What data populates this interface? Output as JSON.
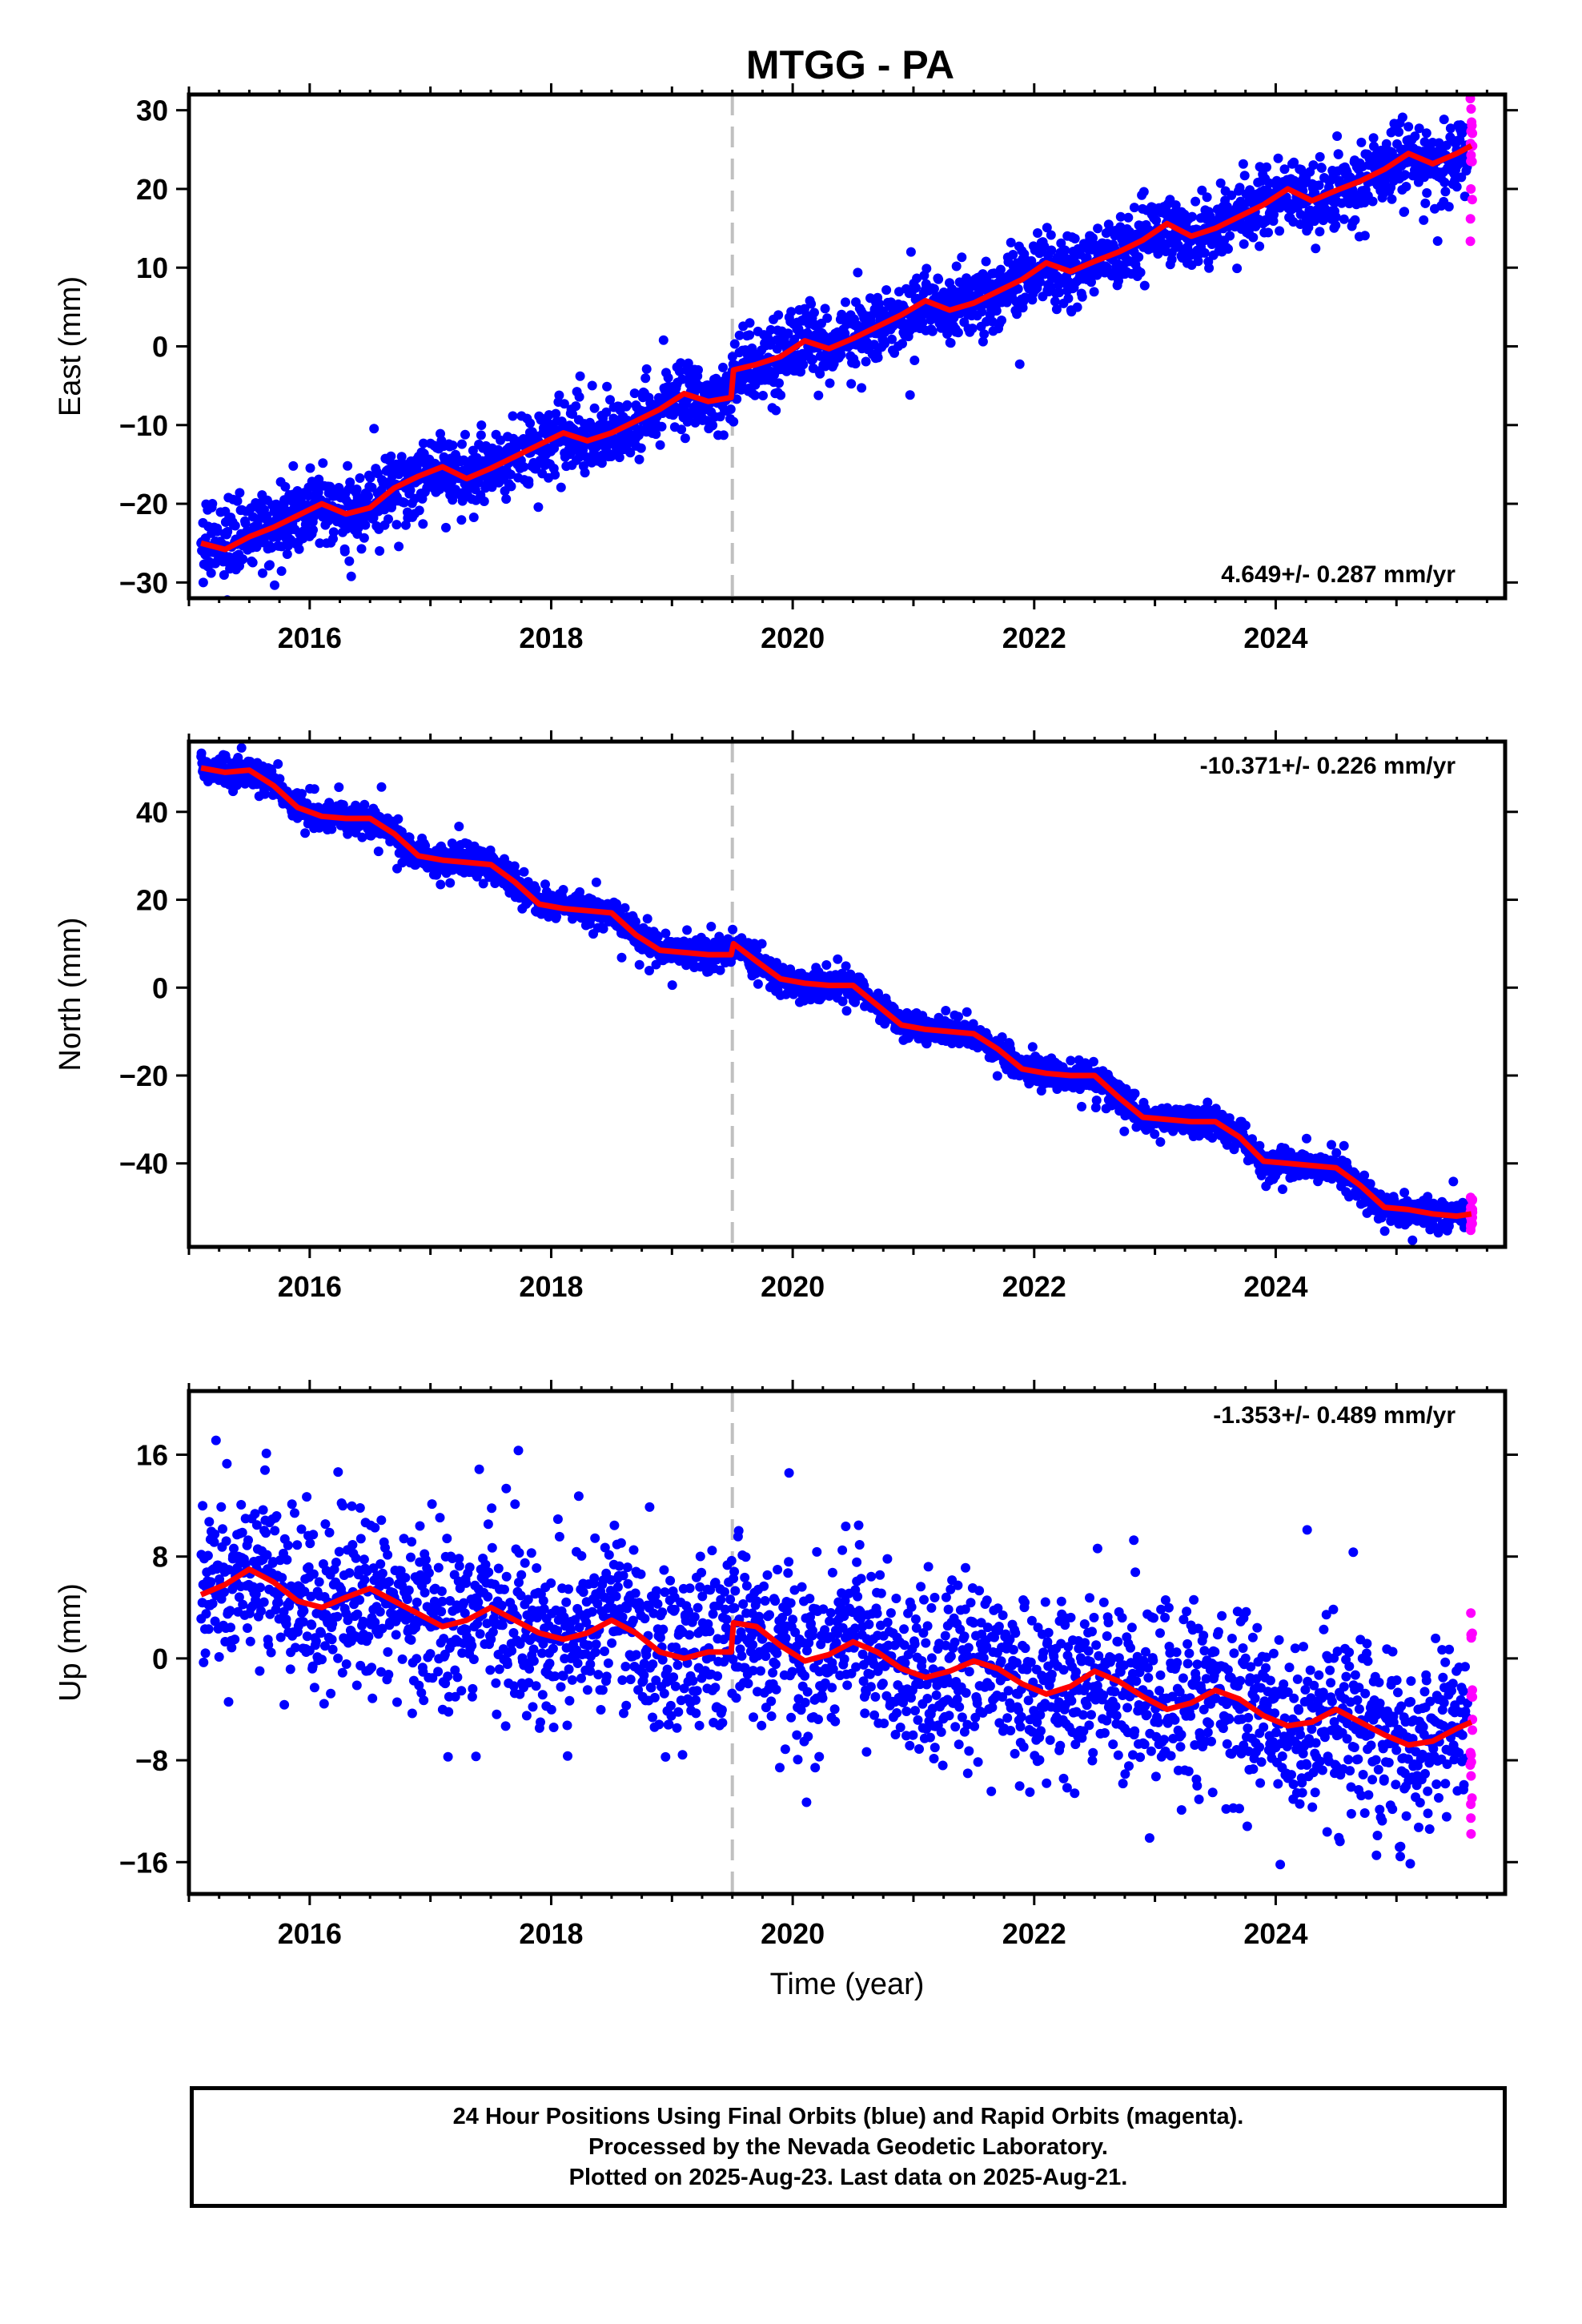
{
  "title": "MTGG - PA",
  "footer": {
    "line1": "24 Hour Positions Using Final Orbits (blue) and Rapid Orbits (magenta).",
    "line2": "Processed by the Nevada Geodetic Laboratory.",
    "line3": "Plotted on 2025-Aug-23. Last data on 2025-Aug-21."
  },
  "colors": {
    "final_points": "#0000ff",
    "rapid_points": "#ff00ff",
    "model_line": "#ff0000",
    "event_line": "#c0c0c0"
  },
  "chart_data": [
    {
      "type": "scatter",
      "panel": "east",
      "ylabel": "East (mm)",
      "xlabel": "",
      "rate_label": "4.649+/- 0.287 mm/yr",
      "xlim": [
        2015.0,
        2025.9
      ],
      "ylim": [
        -32,
        32
      ],
      "xticks": [
        2016,
        2018,
        2020,
        2022,
        2024
      ],
      "xtick_labels": [
        "2016",
        "2018",
        "2020",
        "2022",
        "2024"
      ],
      "yticks": [
        -30,
        -20,
        -10,
        0,
        10,
        20,
        30
      ],
      "ytick_labels": [
        "−30",
        "−20",
        "−10",
        "0",
        "10",
        "20",
        "30"
      ],
      "event_line_x": 2019.5,
      "model": {
        "x": [
          2015.1,
          2015.3,
          2015.5,
          2015.7,
          2015.9,
          2016.1,
          2016.3,
          2016.5,
          2016.7,
          2016.9,
          2017.1,
          2017.3,
          2017.5,
          2017.7,
          2017.9,
          2018.1,
          2018.3,
          2018.5,
          2018.7,
          2018.9,
          2019.1,
          2019.3,
          2019.49,
          2019.51,
          2019.7,
          2019.9,
          2020.1,
          2020.3,
          2020.5,
          2020.7,
          2020.9,
          2021.1,
          2021.3,
          2021.5,
          2021.7,
          2021.9,
          2022.1,
          2022.3,
          2022.5,
          2022.7,
          2022.9,
          2023.1,
          2023.3,
          2023.5,
          2023.7,
          2023.9,
          2024.1,
          2024.3,
          2024.5,
          2024.7,
          2024.9,
          2025.1,
          2025.3,
          2025.5,
          2025.62
        ],
        "y": [
          -25.0,
          -25.8,
          -24.2,
          -23.0,
          -21.5,
          -20.0,
          -21.3,
          -20.5,
          -18.0,
          -16.5,
          -15.3,
          -16.8,
          -15.5,
          -14.0,
          -12.5,
          -11.0,
          -12.0,
          -11.0,
          -9.5,
          -8.0,
          -6.0,
          -7.0,
          -6.5,
          -3.0,
          -2.3,
          -1.3,
          0.7,
          -0.3,
          1.0,
          2.5,
          4.0,
          5.8,
          4.6,
          5.5,
          7.0,
          8.5,
          10.6,
          9.5,
          10.8,
          12.0,
          13.5,
          15.6,
          14.0,
          15.0,
          16.5,
          18.0,
          20.0,
          18.5,
          19.8,
          21.0,
          22.5,
          24.5,
          23.2,
          24.5,
          25.5
        ]
      },
      "series": [
        {
          "name": "Final Orbits",
          "color": "#0000ff",
          "points": 2700,
          "noise": 2.2,
          "outlier_noise": 4.5
        },
        {
          "name": "Rapid Orbits",
          "color": "#ff00ff",
          "points": 18,
          "noise": 3.5
        }
      ]
    },
    {
      "type": "scatter",
      "panel": "north",
      "ylabel": "North (mm)",
      "xlabel": "",
      "rate_label": "-10.371+/- 0.226 mm/yr",
      "xlim": [
        2015.0,
        2025.9
      ],
      "ylim": [
        -59,
        56
      ],
      "xticks": [
        2016,
        2018,
        2020,
        2022,
        2024
      ],
      "xtick_labels": [
        "2016",
        "2018",
        "2020",
        "2022",
        "2024"
      ],
      "yticks": [
        -40,
        -20,
        0,
        20,
        40
      ],
      "ytick_labels": [
        "−40",
        "−20",
        "0",
        "20",
        "40"
      ],
      "event_line_x": 2019.5,
      "model": {
        "x": [
          2015.1,
          2015.3,
          2015.5,
          2015.7,
          2015.9,
          2016.1,
          2016.3,
          2016.5,
          2016.7,
          2016.9,
          2017.1,
          2017.3,
          2017.5,
          2017.7,
          2017.9,
          2018.1,
          2018.3,
          2018.5,
          2018.7,
          2018.9,
          2019.1,
          2019.3,
          2019.49,
          2019.51,
          2019.7,
          2019.9,
          2020.1,
          2020.3,
          2020.5,
          2020.7,
          2020.9,
          2021.1,
          2021.3,
          2021.5,
          2021.7,
          2021.9,
          2022.1,
          2022.3,
          2022.5,
          2022.7,
          2022.9,
          2023.1,
          2023.3,
          2023.5,
          2023.7,
          2023.9,
          2024.1,
          2024.3,
          2024.5,
          2024.7,
          2024.9,
          2025.1,
          2025.3,
          2025.5,
          2025.62
        ],
        "y": [
          50.0,
          49.0,
          49.5,
          46.0,
          41.0,
          39.0,
          38.5,
          38.5,
          35.0,
          30.0,
          29.0,
          28.5,
          28.0,
          24.0,
          19.0,
          18.0,
          17.5,
          17.0,
          12.0,
          8.5,
          8.0,
          7.5,
          7.5,
          10.0,
          6.0,
          2.0,
          1.0,
          0.5,
          0.5,
          -4.0,
          -8.5,
          -9.5,
          -10.0,
          -10.5,
          -14.0,
          -18.5,
          -19.5,
          -20.0,
          -20.0,
          -25.0,
          -29.5,
          -30.0,
          -30.5,
          -30.5,
          -34.0,
          -39.5,
          -40.0,
          -40.5,
          -41.0,
          -45.0,
          -50.0,
          -50.5,
          -51.5,
          -52.0,
          -51.5
        ]
      },
      "series": [
        {
          "name": "Final Orbits",
          "color": "#0000ff",
          "points": 2700,
          "noise": 1.6,
          "outlier_noise": 3.5
        },
        {
          "name": "Rapid Orbits",
          "color": "#ff00ff",
          "points": 18,
          "noise": 2.2
        }
      ]
    },
    {
      "type": "scatter",
      "panel": "up",
      "ylabel": "Up (mm)",
      "xlabel": "Time (year)",
      "rate_label": "-1.353+/- 0.489 mm/yr",
      "xlim": [
        2015.0,
        2025.9
      ],
      "ylim": [
        -18.5,
        21.0
      ],
      "xticks": [
        2016,
        2018,
        2020,
        2022,
        2024
      ],
      "xtick_labels": [
        "2016",
        "2018",
        "2020",
        "2022",
        "2024"
      ],
      "yticks": [
        -16,
        -8,
        0,
        8,
        16
      ],
      "ytick_labels": [
        "−16",
        "−8",
        "0",
        "8",
        "16"
      ],
      "event_line_x": 2019.5,
      "model": {
        "x": [
          2015.1,
          2015.3,
          2015.5,
          2015.7,
          2015.9,
          2016.1,
          2016.3,
          2016.5,
          2016.7,
          2016.9,
          2017.1,
          2017.3,
          2017.5,
          2017.7,
          2017.9,
          2018.1,
          2018.3,
          2018.5,
          2018.7,
          2018.9,
          2019.1,
          2019.3,
          2019.49,
          2019.51,
          2019.7,
          2019.9,
          2020.1,
          2020.3,
          2020.5,
          2020.7,
          2020.9,
          2021.1,
          2021.3,
          2021.5,
          2021.7,
          2021.9,
          2022.1,
          2022.3,
          2022.5,
          2022.7,
          2022.9,
          2023.1,
          2023.3,
          2023.5,
          2023.7,
          2023.9,
          2024.1,
          2024.3,
          2024.5,
          2024.7,
          2024.9,
          2025.1,
          2025.3,
          2025.5,
          2025.62
        ],
        "y": [
          5.0,
          5.8,
          7.0,
          6.0,
          4.5,
          4.0,
          4.8,
          5.5,
          4.5,
          3.5,
          2.5,
          3.0,
          4.0,
          3.0,
          2.0,
          1.5,
          2.0,
          3.0,
          2.0,
          0.5,
          0.0,
          0.5,
          0.5,
          2.8,
          2.5,
          1.0,
          -0.2,
          0.3,
          1.3,
          0.5,
          -0.8,
          -1.5,
          -1.0,
          -0.2,
          -0.8,
          -2.0,
          -2.8,
          -2.2,
          -1.0,
          -1.8,
          -3.0,
          -4.0,
          -3.5,
          -2.5,
          -3.2,
          -4.5,
          -5.3,
          -5.0,
          -4.0,
          -5.0,
          -6.0,
          -6.8,
          -6.5,
          -5.5,
          -5.0
        ]
      },
      "series": [
        {
          "name": "Final Orbits",
          "color": "#0000ff",
          "points": 2400,
          "noise": 3.3,
          "outlier_noise": 6.0
        },
        {
          "name": "Rapid Orbits",
          "color": "#ff00ff",
          "points": 18,
          "noise": 7.0
        }
      ]
    }
  ]
}
